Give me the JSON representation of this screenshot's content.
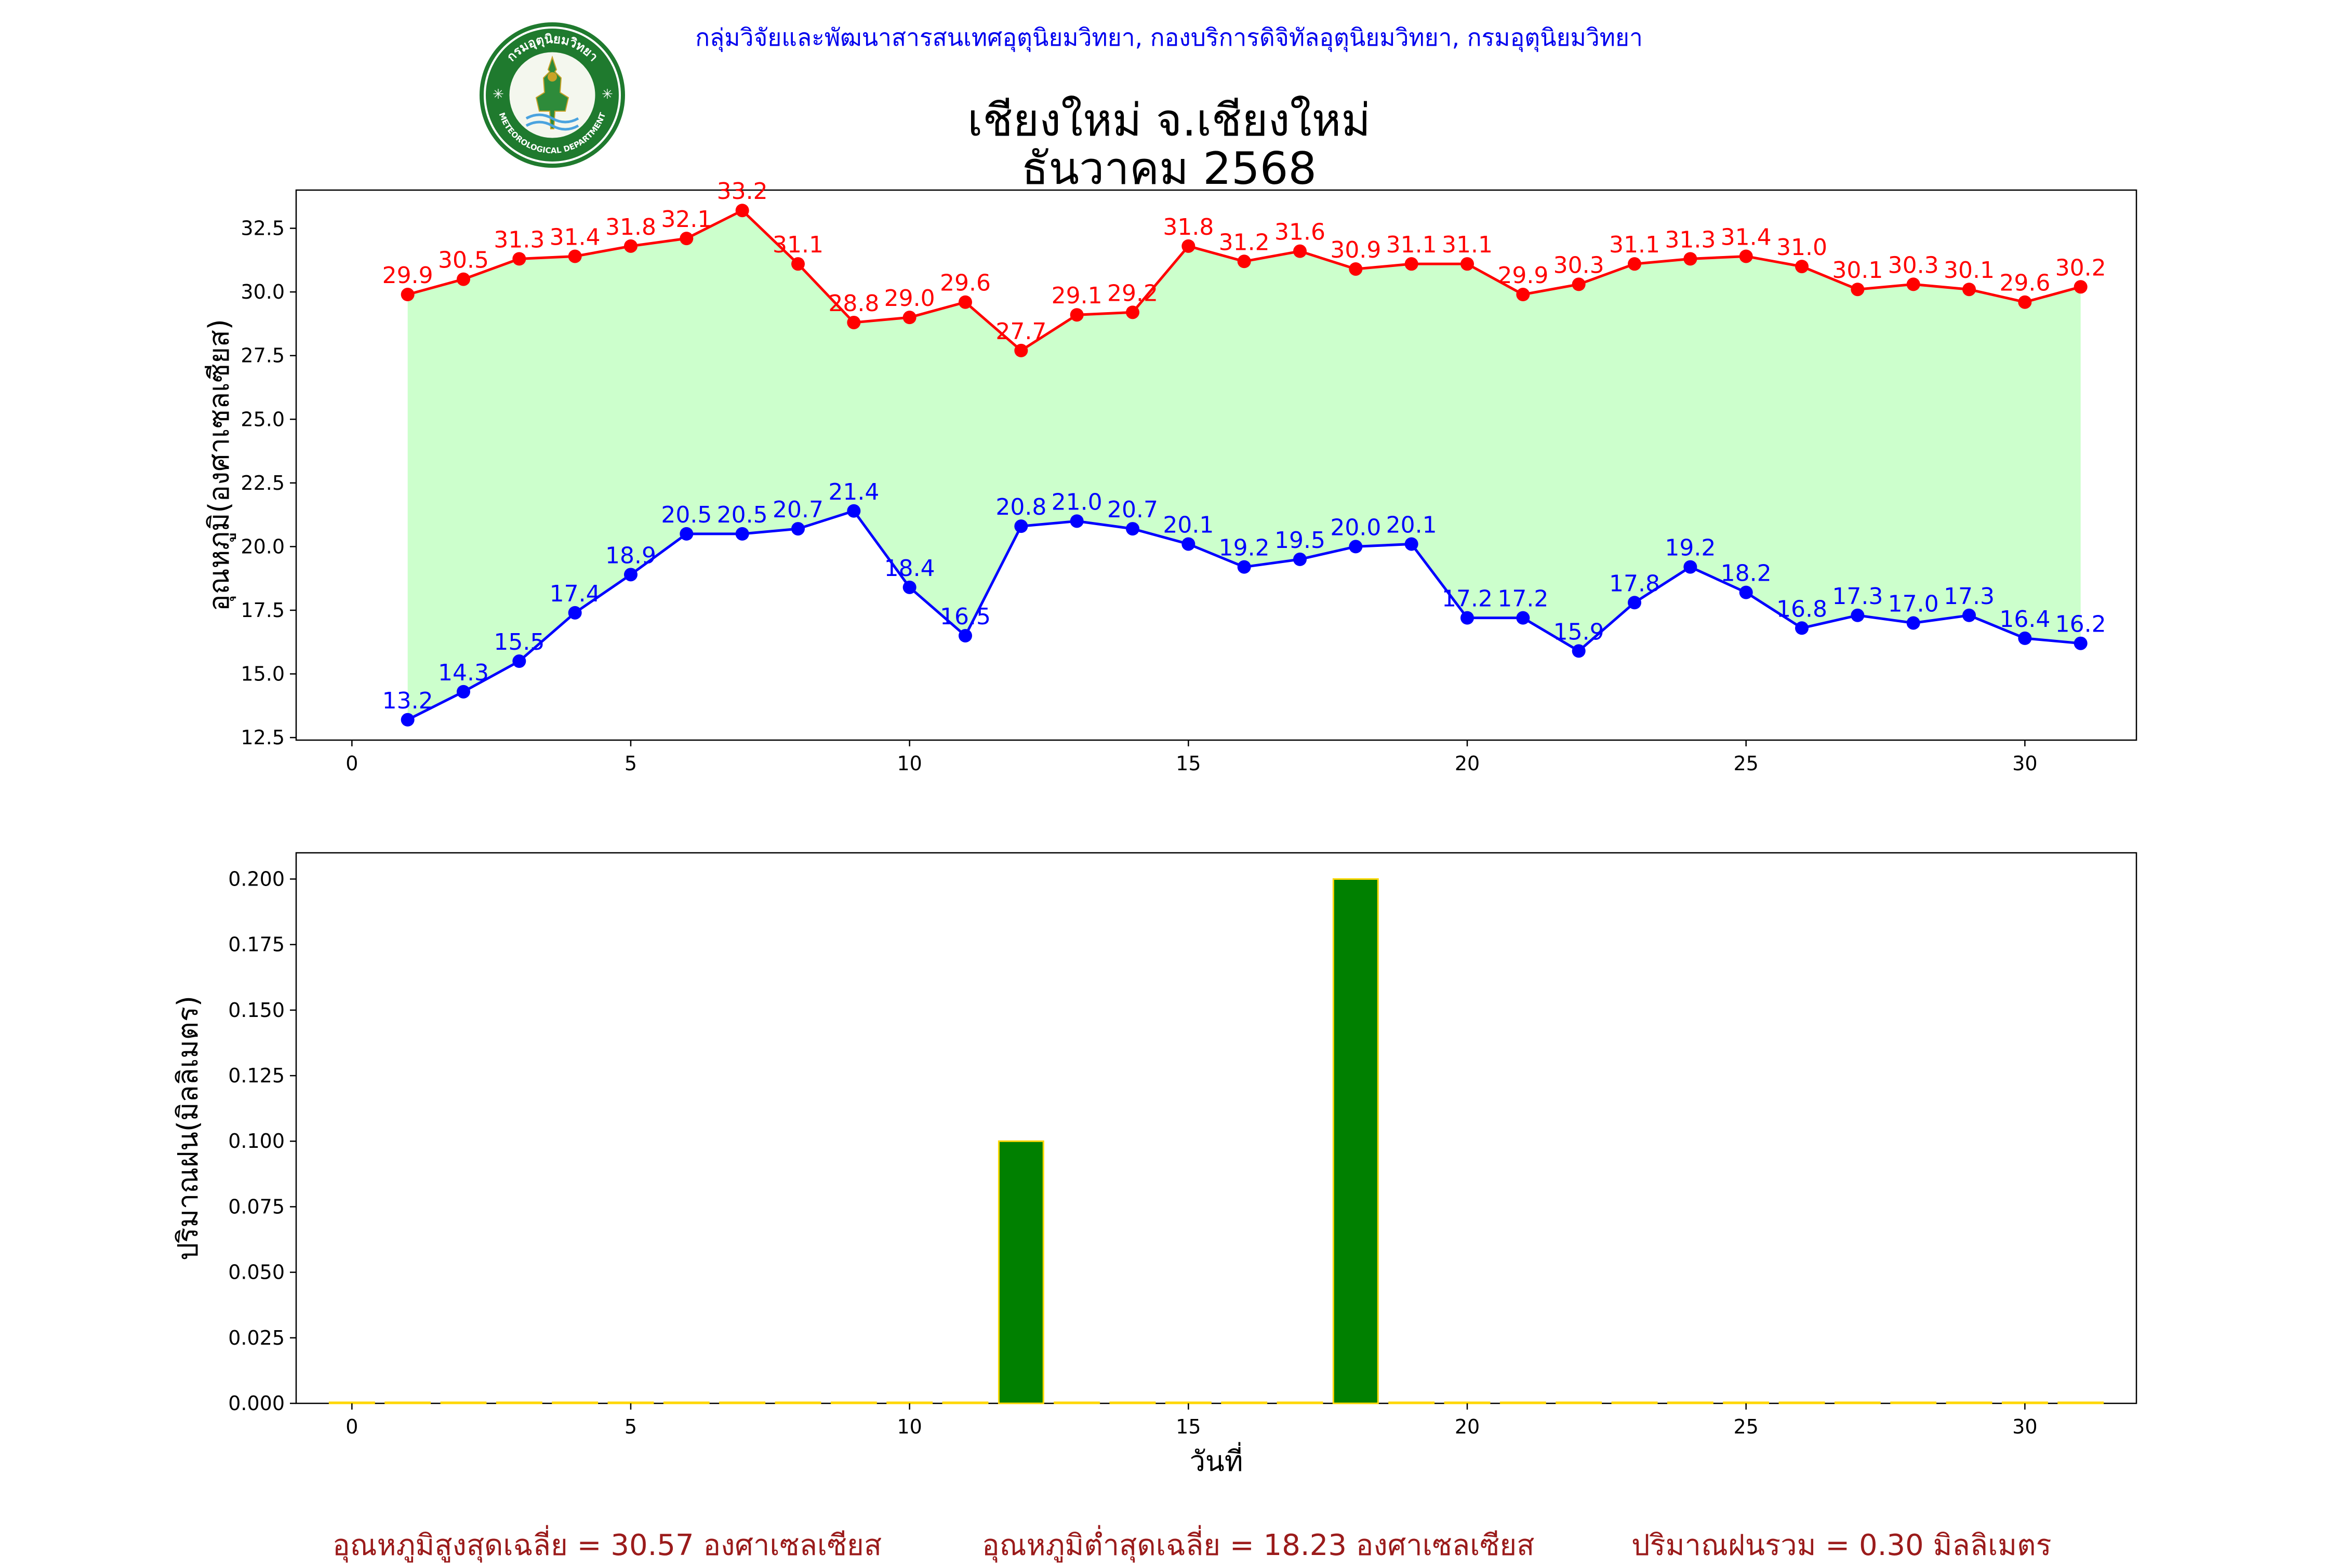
{
  "header": {
    "agency": "กลุ่มวิจัยและพัฒนาสารสนเทศอุตุนิยมวิทยา, กองบริการดิจิทัลอุตุนิยมวิทยา, กรมอุตุนิยมวิทยา",
    "title_line1": "เชียงใหม่ จ.เชียงใหม่",
    "title_line2": "ธันวาคม 2568",
    "logo_top_text": "กรมอุตุนิยมวิทยา",
    "logo_bottom_text": "METEOROLOGICAL DEPARTMENT"
  },
  "colors": {
    "tmax": "#ff0000",
    "tmin": "#0000ff",
    "fill": "#ccffcc",
    "bar": "#008000",
    "bar_edge": "#ffd700",
    "footer": "#9b1b1b",
    "agency": "#0000ee"
  },
  "chart_data": [
    {
      "type": "line",
      "ylabel": "อุณหภูมิ(องศาเซลเซียส)",
      "xlabel": "",
      "xlim": [
        -1,
        32
      ],
      "ylim": [
        12.4,
        34.0
      ],
      "xticks": [
        0,
        5,
        10,
        15,
        20,
        25,
        30
      ],
      "xtick_labels": [
        "0",
        "5",
        "10",
        "15",
        "20",
        "25",
        "30"
      ],
      "yticks": [
        12.5,
        15.0,
        17.5,
        20.0,
        22.5,
        25.0,
        27.5,
        30.0,
        32.5
      ],
      "ytick_labels": [
        "12.5",
        "15.0",
        "17.5",
        "20.0",
        "22.5",
        "25.0",
        "27.5",
        "30.0",
        "32.5"
      ],
      "x": [
        1,
        2,
        3,
        4,
        5,
        6,
        7,
        8,
        9,
        10,
        11,
        12,
        13,
        14,
        15,
        16,
        17,
        18,
        19,
        20,
        21,
        22,
        23,
        24,
        25,
        26,
        27,
        28,
        29,
        30,
        31
      ],
      "series": [
        {
          "key": "tmax",
          "values": [
            29.9,
            30.5,
            31.3,
            31.4,
            31.8,
            32.1,
            33.2,
            31.1,
            28.8,
            29.0,
            29.6,
            27.7,
            29.1,
            29.2,
            31.8,
            31.2,
            31.6,
            30.9,
            31.1,
            31.1,
            29.9,
            30.3,
            31.1,
            31.3,
            31.4,
            31.0,
            30.1,
            30.3,
            30.1,
            29.6,
            30.2
          ],
          "labels": [
            "29.9",
            "30.5",
            "31.3",
            "31.4",
            "31.8",
            "32.1",
            "33.2",
            "31.1",
            "28.8",
            "29.0",
            "29.6",
            "27.7",
            "29.1",
            "29.2",
            "31.8",
            "31.2",
            "31.6",
            "30.9",
            "31.1",
            "31.1",
            "29.9",
            "30.3",
            "31.1",
            "31.3",
            "31.4",
            "31.0",
            "30.1",
            "30.3",
            "30.1",
            "29.6",
            "30.2"
          ]
        },
        {
          "key": "tmin",
          "values": [
            13.2,
            14.3,
            15.5,
            17.4,
            18.9,
            20.5,
            20.5,
            20.7,
            21.4,
            18.4,
            16.5,
            20.8,
            21.0,
            20.7,
            20.1,
            19.2,
            19.5,
            20.0,
            20.1,
            17.2,
            17.2,
            15.9,
            17.8,
            19.2,
            18.2,
            16.8,
            17.3,
            17.0,
            17.3,
            16.4,
            16.2
          ],
          "labels": [
            "13.2",
            "14.3",
            "15.5",
            "17.4",
            "18.9",
            "20.5",
            "20.5",
            "20.7",
            "21.4",
            "18.4",
            "16.5",
            "20.8",
            "21.0",
            "20.7",
            "20.1",
            "19.2",
            "19.5",
            "20.0",
            "20.1",
            "17.2",
            "17.2",
            "15.9",
            "17.8",
            "19.2",
            "18.2",
            "16.8",
            "17.3",
            "17.0",
            "17.3",
            "16.4",
            "16.2"
          ]
        }
      ]
    },
    {
      "type": "bar",
      "ylabel": "ปริมาณฝน(มิลลิเมตร)",
      "xlabel": "วันที่",
      "xlim": [
        -1,
        32
      ],
      "ylim": [
        0,
        0.21
      ],
      "xticks": [
        0,
        5,
        10,
        15,
        20,
        25,
        30
      ],
      "xtick_labels": [
        "0",
        "5",
        "10",
        "15",
        "20",
        "25",
        "30"
      ],
      "yticks": [
        0,
        0.025,
        0.05,
        0.075,
        0.1,
        0.125,
        0.15,
        0.175,
        0.2
      ],
      "ytick_labels": [
        "0.000",
        "0.025",
        "0.050",
        "0.075",
        "0.100",
        "0.125",
        "0.150",
        "0.175",
        "0.200"
      ],
      "x": [
        0,
        1,
        2,
        3,
        4,
        5,
        6,
        7,
        8,
        9,
        10,
        11,
        12,
        13,
        14,
        15,
        16,
        17,
        18,
        19,
        20,
        21,
        22,
        23,
        24,
        25,
        26,
        27,
        28,
        29,
        30,
        31
      ],
      "values": [
        0,
        0,
        0,
        0,
        0,
        0,
        0,
        0,
        0,
        0,
        0,
        0,
        0.1,
        0,
        0,
        0,
        0,
        0,
        0.2,
        0,
        0,
        0,
        0,
        0,
        0,
        0,
        0,
        0,
        0,
        0,
        0,
        0
      ]
    }
  ],
  "footer": {
    "avg_max": "อุณหภูมิสูงสุดเฉลี่ย = 30.57 องศาเซลเซียส",
    "avg_min": "อุณหภูมิต่ำสุดเฉลี่ย = 18.23 องศาเซลเซียส",
    "total_rain": "ปริมาณฝนรวม = 0.30 มิลลิเมตร"
  }
}
